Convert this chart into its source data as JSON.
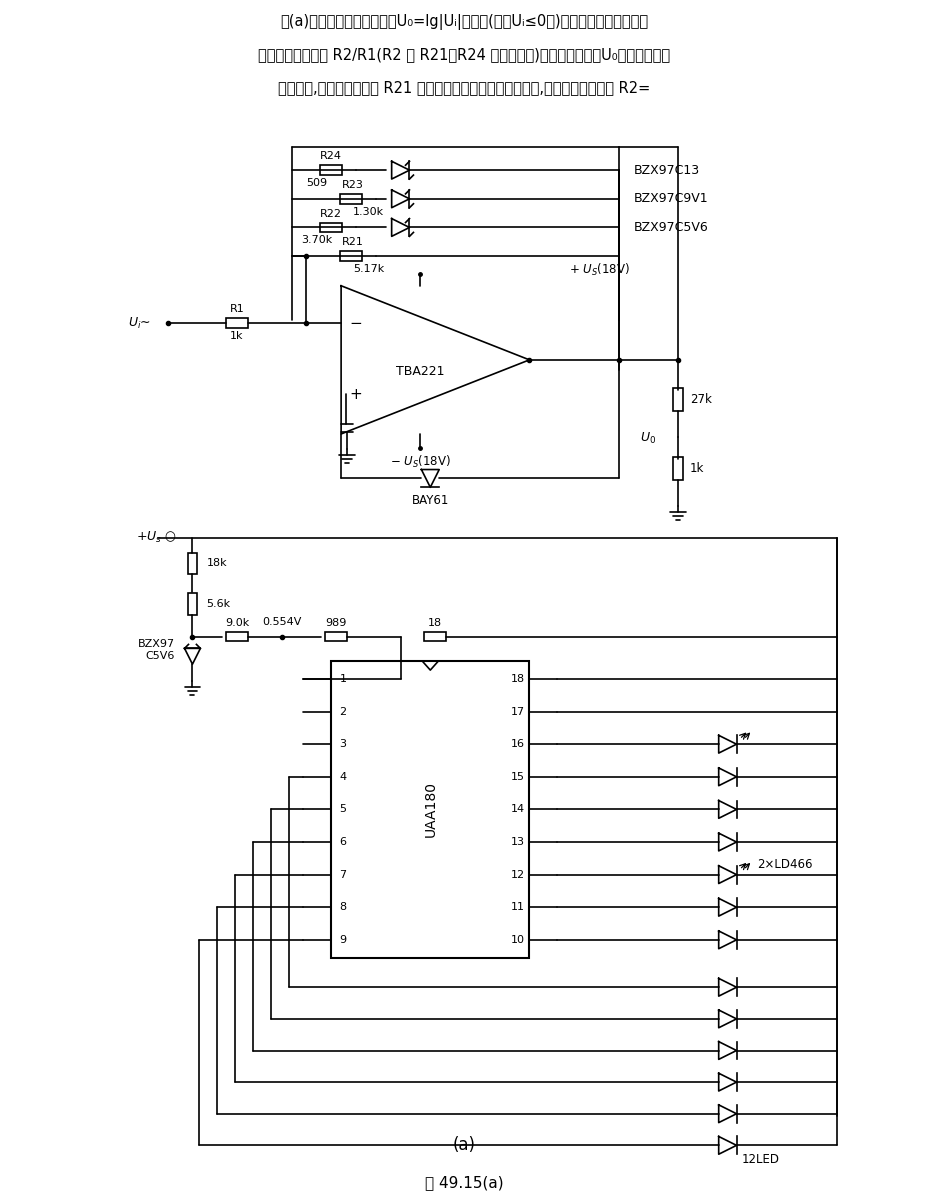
{
  "bg_color": "#ffffff",
  "caption": [
    "图(a)电路中多边形导线可有U₀=lg|Uᵢ|的关系(对于Uᵢ≤0时)。运算放大器的放大系",
    "数决定于电阻比值 R2/R1(R2 为 R21～R24 的综合数值)。只要输出电压U₀低于发光二极",
    "管的电压,反馈支路中上的 R21 就不起作用。如果超过了该电压,则反馈电阻就减小 R2="
  ],
  "title": "图 49.15(a)",
  "label_a": "(a)"
}
